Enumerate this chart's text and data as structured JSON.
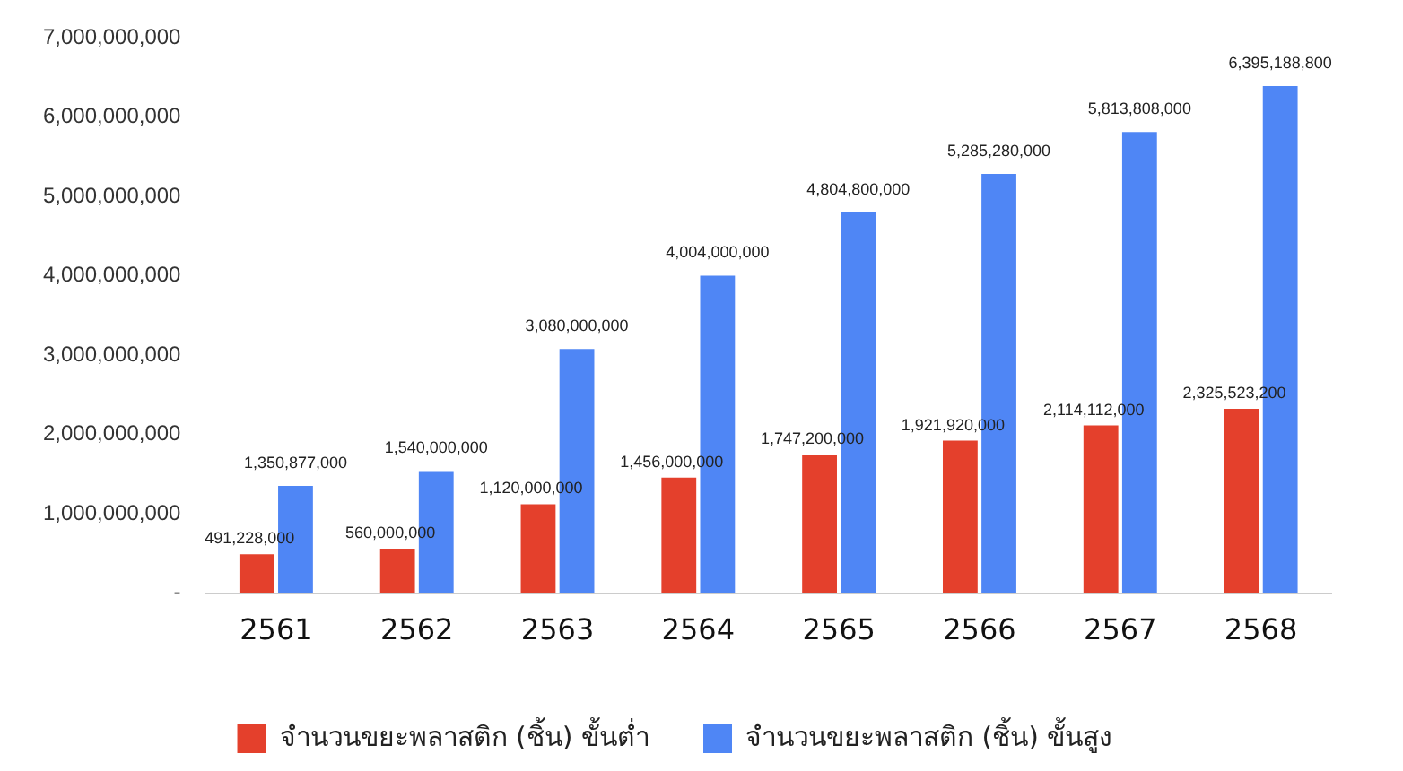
{
  "chart_data": {
    "type": "bar",
    "categories": [
      "2561",
      "2562",
      "2563",
      "2564",
      "2565",
      "2566",
      "2567",
      "2568"
    ],
    "series": [
      {
        "name": "จำนวนขยะพลาสติก (ชิ้น) ขั้นต่ำ",
        "color": "#e4402c",
        "values": [
          491228000,
          560000000,
          1120000000,
          1456000000,
          1747200000,
          1921920000,
          2114112000,
          2325523200
        ],
        "value_labels": [
          "491,228,000",
          "560,000,000",
          "1,120,000,000",
          "1,456,000,000",
          "1,747,200,000",
          "1,921,920,000",
          "2,114,112,000",
          "2,325,523,200"
        ]
      },
      {
        "name": "จำนวนขยะพลาสติก (ชิ้น) ขั้นสูง",
        "color": "#4f86f5",
        "values": [
          1350877000,
          1540000000,
          3080000000,
          4004000000,
          4804800000,
          5285280000,
          5813808000,
          6395188800
        ],
        "value_labels": [
          "1,350,877,000",
          "1,540,000,000",
          "3,080,000,000",
          "4,004,000,000",
          "4,804,800,000",
          "5,285,280,000",
          "5,813,808,000",
          "6,395,188,800"
        ]
      }
    ],
    "ylim": [
      0,
      7000000000
    ],
    "yticks": [
      {
        "value": 0,
        "label": "-"
      },
      {
        "value": 1000000000,
        "label": "1,000,000,000"
      },
      {
        "value": 2000000000,
        "label": "2,000,000,000"
      },
      {
        "value": 3000000000,
        "label": "3,000,000,000"
      },
      {
        "value": 4000000000,
        "label": "4,000,000,000"
      },
      {
        "value": 5000000000,
        "label": "5,000,000,000"
      },
      {
        "value": 6000000000,
        "label": "6,000,000,000"
      },
      {
        "value": 7000000000,
        "label": "7,000,000,000"
      }
    ],
    "grid": false,
    "legend": "bottom",
    "data_labels": true
  }
}
